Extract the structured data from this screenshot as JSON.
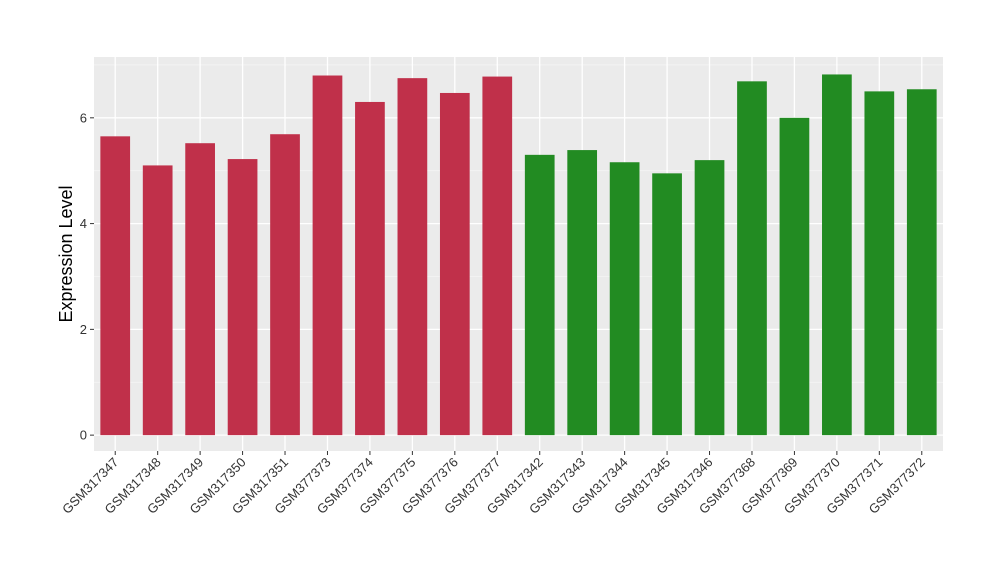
{
  "chart_data": {
    "type": "bar",
    "title": "",
    "xlabel": "",
    "ylabel": "Expression Level",
    "ylim": [
      -0.3,
      7.15
    ],
    "yticks": [
      0,
      2,
      4,
      6
    ],
    "grid": true,
    "background": "#ebebeb",
    "categories": [
      "GSM317347",
      "GSM317348",
      "GSM317349",
      "GSM317350",
      "GSM317351",
      "GSM377373",
      "GSM377374",
      "GSM377375",
      "GSM377376",
      "GSM377377",
      "GSM317342",
      "GSM317343",
      "GSM317344",
      "GSM317345",
      "GSM317346",
      "GSM377368",
      "GSM377369",
      "GSM377370",
      "GSM377371",
      "GSM377372"
    ],
    "values": [
      5.65,
      5.1,
      5.52,
      5.22,
      5.69,
      6.8,
      6.3,
      6.75,
      6.47,
      6.78,
      5.3,
      5.39,
      5.16,
      4.95,
      5.2,
      6.69,
      6.0,
      6.82,
      6.5,
      6.54
    ],
    "bar_colors": [
      "#c0304a",
      "#c0304a",
      "#c0304a",
      "#c0304a",
      "#c0304a",
      "#c0304a",
      "#c0304a",
      "#c0304a",
      "#c0304a",
      "#c0304a",
      "#228b22",
      "#228b22",
      "#228b22",
      "#228b22",
      "#228b22",
      "#228b22",
      "#228b22",
      "#228b22",
      "#228b22",
      "#228b22"
    ]
  }
}
